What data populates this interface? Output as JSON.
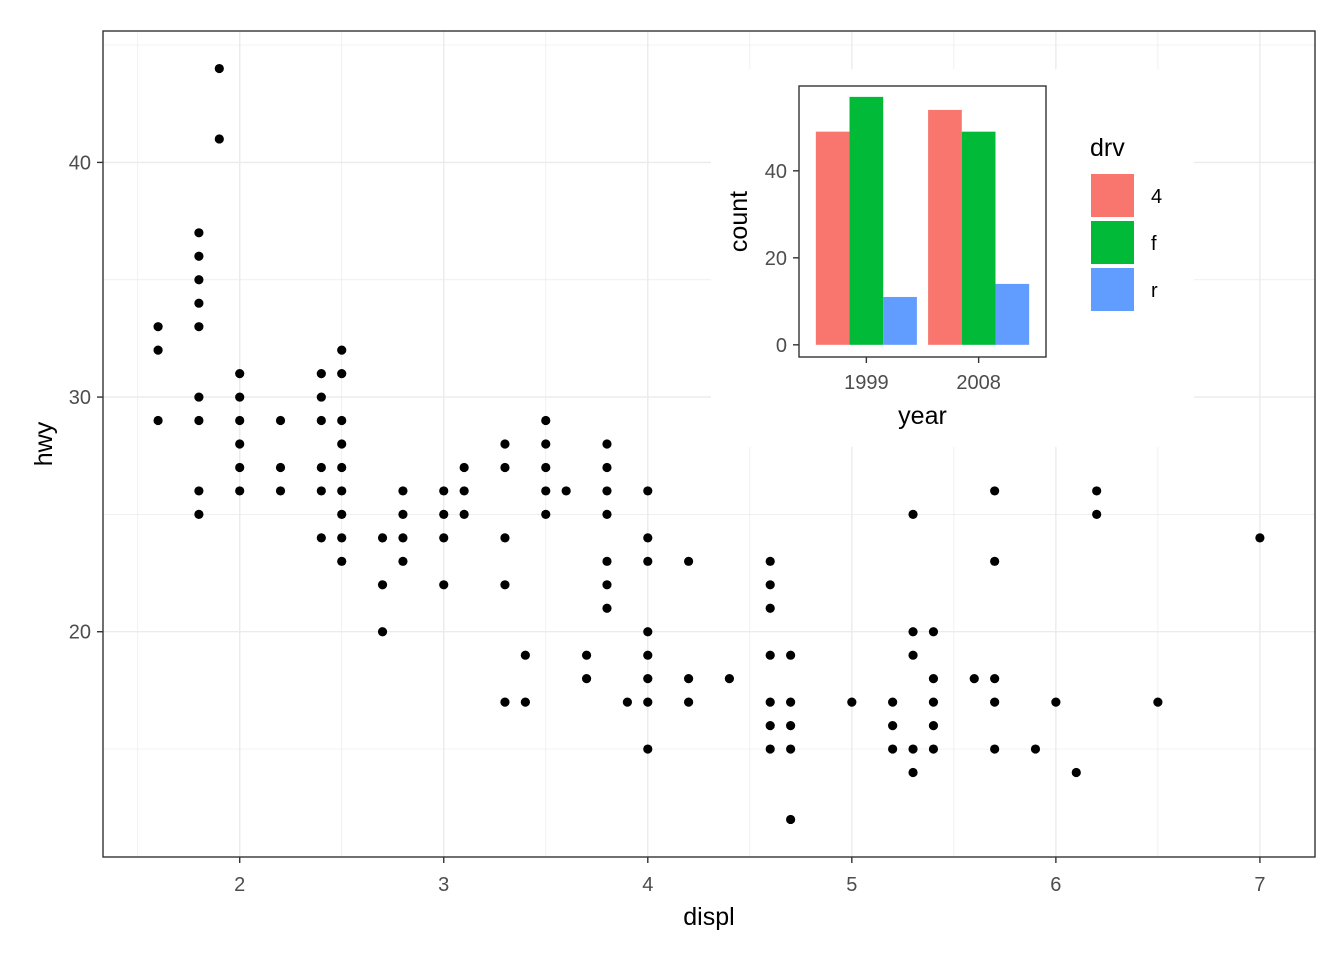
{
  "chart_data": [
    {
      "type": "scatter",
      "xlabel": "displ",
      "ylabel": "hwy",
      "xlim": [
        1.33,
        7.27
      ],
      "ylim": [
        10.4,
        45.6
      ],
      "x_ticks": [
        "2",
        "3",
        "4",
        "5",
        "6",
        "7"
      ],
      "y_ticks": [
        "20",
        "30",
        "40"
      ],
      "grid": true,
      "point_color": "#000000",
      "points": [
        [
          1.6,
          33
        ],
        [
          1.6,
          32
        ],
        [
          1.6,
          29
        ],
        [
          1.8,
          37
        ],
        [
          1.8,
          36
        ],
        [
          1.8,
          35
        ],
        [
          1.8,
          34
        ],
        [
          1.8,
          33
        ],
        [
          1.8,
          30
        ],
        [
          1.8,
          29
        ],
        [
          1.8,
          26
        ],
        [
          1.8,
          25
        ],
        [
          1.9,
          44
        ],
        [
          1.9,
          41
        ],
        [
          2.0,
          31
        ],
        [
          2.0,
          30
        ],
        [
          2.0,
          29
        ],
        [
          2.0,
          28
        ],
        [
          2.0,
          27
        ],
        [
          2.0,
          26
        ],
        [
          2.2,
          29
        ],
        [
          2.2,
          27
        ],
        [
          2.2,
          26
        ],
        [
          2.4,
          31
        ],
        [
          2.4,
          30
        ],
        [
          2.4,
          29
        ],
        [
          2.4,
          27
        ],
        [
          2.4,
          26
        ],
        [
          2.4,
          24
        ],
        [
          2.5,
          32
        ],
        [
          2.5,
          31
        ],
        [
          2.5,
          29
        ],
        [
          2.5,
          28
        ],
        [
          2.5,
          27
        ],
        [
          2.5,
          26
        ],
        [
          2.5,
          25
        ],
        [
          2.5,
          24
        ],
        [
          2.5,
          23
        ],
        [
          2.7,
          24
        ],
        [
          2.7,
          22
        ],
        [
          2.7,
          20
        ],
        [
          2.8,
          26
        ],
        [
          2.8,
          25
        ],
        [
          2.8,
          24
        ],
        [
          2.8,
          23
        ],
        [
          3.0,
          26
        ],
        [
          3.0,
          25
        ],
        [
          3.0,
          24
        ],
        [
          3.0,
          22
        ],
        [
          3.1,
          27
        ],
        [
          3.1,
          26
        ],
        [
          3.1,
          25
        ],
        [
          3.3,
          28
        ],
        [
          3.3,
          27
        ],
        [
          3.3,
          24
        ],
        [
          3.3,
          22
        ],
        [
          3.3,
          17
        ],
        [
          3.4,
          19
        ],
        [
          3.4,
          17
        ],
        [
          3.5,
          29
        ],
        [
          3.5,
          28
        ],
        [
          3.5,
          27
        ],
        [
          3.5,
          26
        ],
        [
          3.5,
          25
        ],
        [
          3.6,
          26
        ],
        [
          3.7,
          19
        ],
        [
          3.7,
          18
        ],
        [
          3.8,
          28
        ],
        [
          3.8,
          27
        ],
        [
          3.8,
          26
        ],
        [
          3.8,
          25
        ],
        [
          3.8,
          23
        ],
        [
          3.8,
          22
        ],
        [
          3.8,
          21
        ],
        [
          3.9,
          17
        ],
        [
          4.0,
          26
        ],
        [
          4.0,
          24
        ],
        [
          4.0,
          23
        ],
        [
          4.0,
          20
        ],
        [
          4.0,
          19
        ],
        [
          4.0,
          18
        ],
        [
          4.0,
          17
        ],
        [
          4.0,
          15
        ],
        [
          4.2,
          23
        ],
        [
          4.2,
          18
        ],
        [
          4.2,
          17
        ],
        [
          4.4,
          18
        ],
        [
          4.6,
          23
        ],
        [
          4.6,
          22
        ],
        [
          4.6,
          21
        ],
        [
          4.6,
          19
        ],
        [
          4.6,
          17
        ],
        [
          4.6,
          16
        ],
        [
          4.6,
          15
        ],
        [
          4.7,
          19
        ],
        [
          4.7,
          17
        ],
        [
          4.7,
          16
        ],
        [
          4.7,
          15
        ],
        [
          4.7,
          12
        ],
        [
          5.0,
          17
        ],
        [
          5.2,
          17
        ],
        [
          5.2,
          16
        ],
        [
          5.2,
          15
        ],
        [
          5.3,
          25
        ],
        [
          5.3,
          20
        ],
        [
          5.3,
          19
        ],
        [
          5.3,
          15
        ],
        [
          5.3,
          14
        ],
        [
          5.4,
          20
        ],
        [
          5.4,
          18
        ],
        [
          5.4,
          17
        ],
        [
          5.4,
          16
        ],
        [
          5.4,
          15
        ],
        [
          5.6,
          18
        ],
        [
          5.7,
          26
        ],
        [
          5.7,
          23
        ],
        [
          5.7,
          18
        ],
        [
          5.7,
          17
        ],
        [
          5.7,
          15
        ],
        [
          5.9,
          15
        ],
        [
          6.0,
          17
        ],
        [
          6.1,
          14
        ],
        [
          6.2,
          26
        ],
        [
          6.2,
          25
        ],
        [
          6.5,
          17
        ],
        [
          7.0,
          24
        ]
      ]
    },
    {
      "type": "bar",
      "xlabel": "year",
      "ylabel": "count",
      "categories": [
        "1999",
        "2008"
      ],
      "y_ticks": [
        "0",
        "20",
        "40"
      ],
      "ylim": [
        -2.8,
        59.5
      ],
      "grid": false,
      "series": [
        {
          "name": "4",
          "color": "#F8766D",
          "values": [
            49,
            54
          ]
        },
        {
          "name": "f",
          "color": "#00BA38",
          "values": [
            57,
            49
          ]
        },
        {
          "name": "r",
          "color": "#619CFF",
          "values": [
            11,
            14
          ]
        }
      ],
      "legend": {
        "title": "drv",
        "placement": "right"
      }
    }
  ]
}
